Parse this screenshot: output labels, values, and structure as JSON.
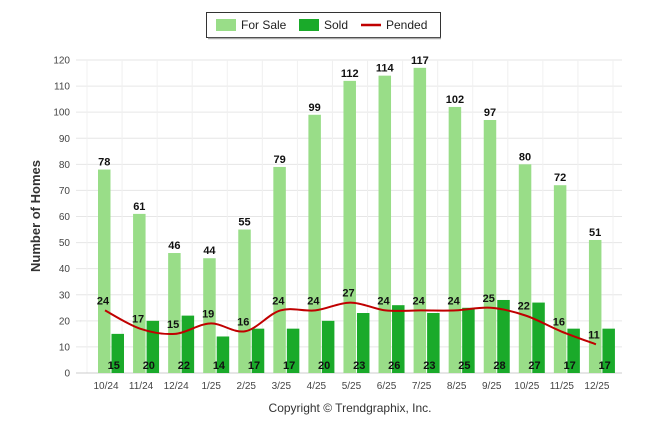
{
  "chart_data": {
    "type": "bar",
    "categories": [
      "10/24",
      "11/24",
      "12/24",
      "1/25",
      "2/25",
      "3/25",
      "4/25",
      "5/25",
      "6/25",
      "7/25",
      "8/25",
      "9/25",
      "10/25",
      "11/25",
      "12/25"
    ],
    "series": [
      {
        "name": "For Sale",
        "type": "bar",
        "color": "#99dd88",
        "values": [
          78,
          61,
          46,
          44,
          55,
          79,
          99,
          112,
          114,
          117,
          102,
          97,
          80,
          72,
          51
        ]
      },
      {
        "name": "Sold",
        "type": "bar",
        "color": "#1aaa2a",
        "values": [
          15,
          20,
          22,
          14,
          17,
          17,
          20,
          23,
          26,
          23,
          25,
          28,
          27,
          17,
          17
        ]
      },
      {
        "name": "Pended",
        "type": "line",
        "color": "#c00000",
        "values": [
          24,
          17,
          15,
          19,
          16,
          24,
          24,
          27,
          24,
          24,
          24,
          25,
          22,
          16,
          11
        ]
      }
    ],
    "ylabel": "Number of Homes",
    "xlabel": "",
    "ylim": [
      0,
      120
    ],
    "yticks": [
      0,
      10,
      20,
      30,
      40,
      50,
      60,
      70,
      80,
      90,
      100,
      110,
      120
    ],
    "grid": true,
    "legend": "top-center",
    "copyright": "Copyright © Trendgraphix, Inc."
  }
}
